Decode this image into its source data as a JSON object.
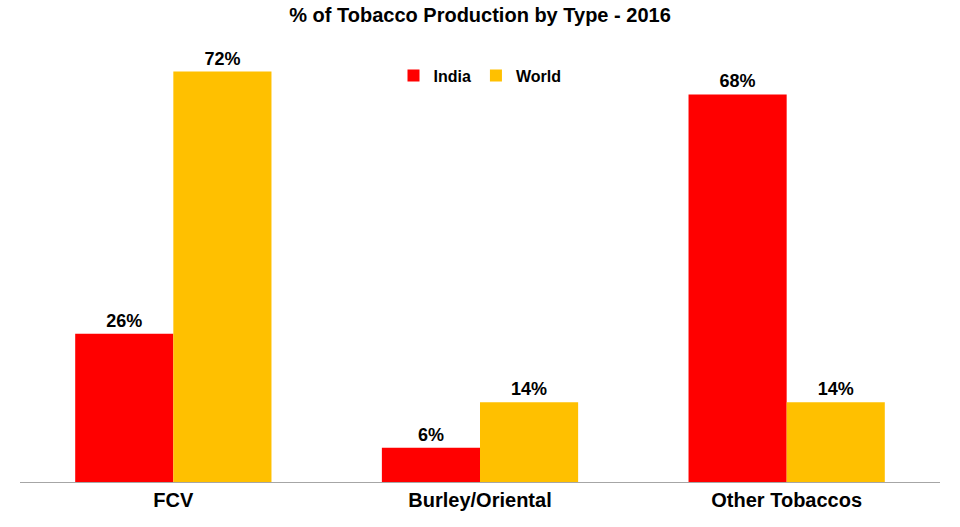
{
  "chart_data": {
    "type": "bar",
    "title": "% of Tobacco Production by Type - 2016",
    "categories": [
      "FCV",
      "Burley/Oriental",
      "Other Tobaccos"
    ],
    "series": [
      {
        "name": "India",
        "color": "#ff0000",
        "values": [
          26,
          6,
          68
        ],
        "value_labels": [
          "26%",
          "6%",
          "68%"
        ]
      },
      {
        "name": "World",
        "color": "#ffc000",
        "values": [
          72,
          14,
          14
        ],
        "value_labels": [
          "72%",
          "14%",
          "14%"
        ]
      }
    ],
    "data_labels": true,
    "tick_labels": "x",
    "grid": false,
    "legend": "top"
  }
}
